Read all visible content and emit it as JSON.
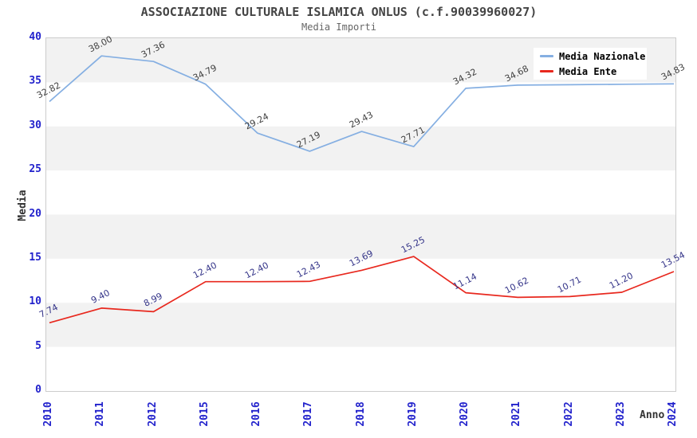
{
  "page": {
    "title": "ASSOCIAZIONE CULTURALE ISLAMICA ONLUS (c.f.90039960027)",
    "subtitle": "Media Importi"
  },
  "chart_data": {
    "type": "line",
    "title": "ASSOCIAZIONE CULTURALE ISLAMICA ONLUS (c.f.90039960027)",
    "subtitle": "Media Importi",
    "xlabel": "Anno",
    "ylabel": "Media",
    "ylim": [
      0,
      40
    ],
    "yticks": [
      0,
      5,
      10,
      15,
      20,
      25,
      30,
      35,
      40
    ],
    "grid": "alternating-horizontal-bands",
    "legend_position": "top-right",
    "categories": [
      "2010",
      "2011",
      "2012",
      "2015",
      "2016",
      "2017",
      "2018",
      "2019",
      "2020",
      "2021",
      "2022",
      "2023",
      "2024"
    ],
    "series": [
      {
        "name": "Media Nazionale",
        "color": "#85afe2",
        "label_color": "#404040",
        "values": [
          32.82,
          38.0,
          37.36,
          34.79,
          29.24,
          27.19,
          29.43,
          27.71,
          34.32,
          34.68,
          34.73,
          34.78,
          34.83
        ],
        "labels": [
          "32.82",
          "38.00",
          "37.36",
          "34.79",
          "29.24",
          "27.19",
          "29.43",
          "27.71",
          "34.32",
          "34.68",
          "",
          "",
          "34.83"
        ]
      },
      {
        "name": "Media Ente",
        "color": "#e8281e",
        "label_color": "#333388",
        "values": [
          7.74,
          9.4,
          8.99,
          12.4,
          12.4,
          12.43,
          13.69,
          15.25,
          11.14,
          10.62,
          10.71,
          11.2,
          13.54
        ],
        "labels": [
          "7.74",
          "9.40",
          "8.99",
          "12.40",
          "12.40",
          "12.43",
          "13.69",
          "15.25",
          "11.14",
          "10.62",
          "10.71",
          "11.20",
          "13.54"
        ]
      }
    ],
    "style": {
      "band_color": "#f2f2f2",
      "plot_border_color": "#cccccc",
      "tick_label_color": "#2222cc",
      "axis_title_color": "#333333"
    }
  }
}
